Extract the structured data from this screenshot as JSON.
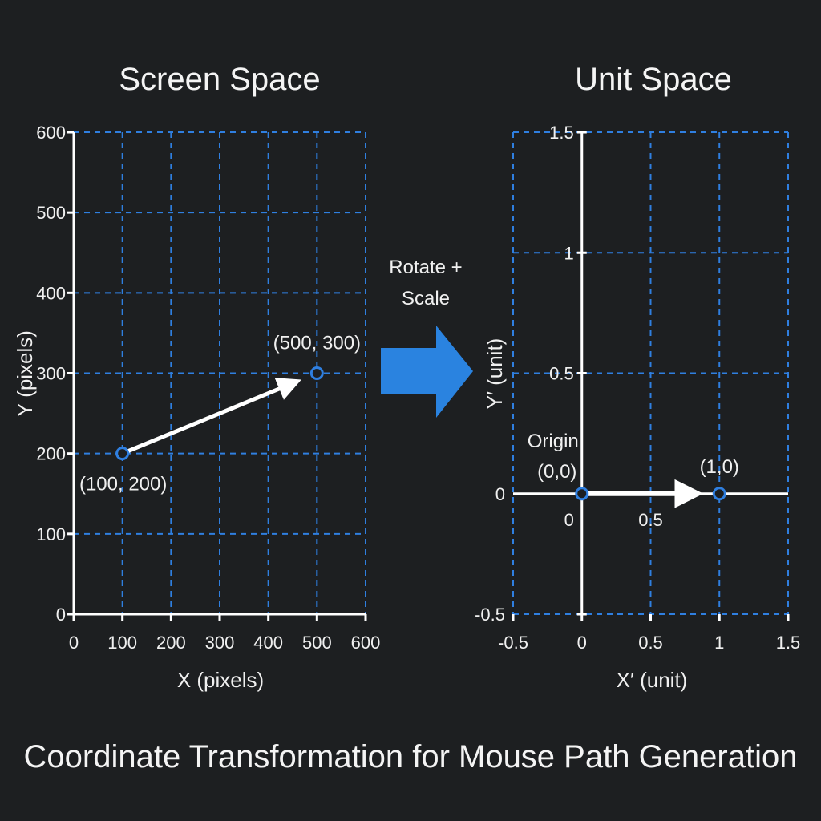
{
  "colors": {
    "background": "#1d1f21",
    "grid": "#2f7fe0",
    "axis": "#ffffff",
    "point_stroke": "#2f7fe0",
    "point_fill": "#1d1f21",
    "transform_arrow": "#2a83e0"
  },
  "caption": "Coordinate Transformation for Mouse Path Generation",
  "transform": {
    "label_line1": "Rotate +",
    "label_line2": "Scale",
    "icon": "arrow-right-icon"
  },
  "chart_data": [
    {
      "type": "scatter",
      "title": "Screen Space",
      "xlabel": "X (pixels)",
      "ylabel": "Y (pixels)",
      "xlim": [
        0,
        600
      ],
      "ylim": [
        0,
        600
      ],
      "x_ticks": [
        0,
        100,
        200,
        300,
        400,
        500,
        600
      ],
      "y_ticks": [
        0,
        100,
        200,
        300,
        400,
        500,
        600
      ],
      "x_tick_labels": [
        "0",
        "100",
        "200",
        "300",
        "400",
        "500",
        "600"
      ],
      "y_tick_labels": [
        "0",
        "100",
        "200",
        "300",
        "400",
        "500",
        "600"
      ],
      "grid": true,
      "points": [
        {
          "x": 100,
          "y": 200,
          "label": "(100, 200)"
        },
        {
          "x": 500,
          "y": 300,
          "label": "(500, 300)"
        }
      ],
      "arrow": {
        "from": [
          100,
          200
        ],
        "to": [
          500,
          300
        ]
      }
    },
    {
      "type": "scatter",
      "title": "Unit Space",
      "xlabel": "X′ (unit)",
      "ylabel": "Y′ (unit)",
      "xlim": [
        -0.5,
        1.5
      ],
      "ylim": [
        -0.5,
        1.5
      ],
      "x_ticks": [
        -0.5,
        0,
        0.5,
        1,
        1.5
      ],
      "y_ticks": [
        -0.5,
        0,
        0.5,
        1,
        1.5
      ],
      "x_tick_labels": [
        "-0.5",
        "0",
        "0.5",
        "1",
        "1.5"
      ],
      "y_tick_labels": [
        "-0.5",
        "0",
        "0.5",
        "1",
        "1.5"
      ],
      "inner_x_tick_labels": [
        {
          "x": 0,
          "label": "0"
        },
        {
          "x": 0.5,
          "label": "0.5"
        }
      ],
      "grid": true,
      "points": [
        {
          "x": 0,
          "y": 0,
          "label": "(0,0)",
          "label_above": "Origin"
        },
        {
          "x": 1,
          "y": 0,
          "label": "(1,0)"
        }
      ],
      "arrow": {
        "from": [
          0,
          0
        ],
        "to": [
          1,
          0
        ]
      }
    }
  ]
}
